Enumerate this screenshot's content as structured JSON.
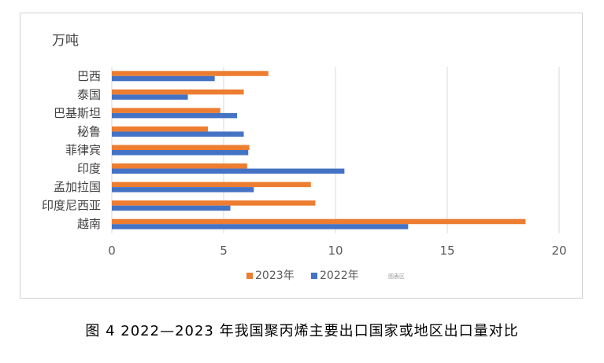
{
  "caption": "图 4  2022—2023 年我国聚丙烯主要出口国家或地区出口量对比",
  "colors": {
    "series_2023": "#ED7D31",
    "series_2022": "#4472C4",
    "grid": "#d9d9d9",
    "text": "#404040",
    "axis_text": "#595959"
  },
  "chart_data": {
    "type": "bar",
    "orientation": "horizontal",
    "title": "",
    "unit_label": "万吨",
    "categories": [
      "巴西",
      "泰国",
      "巴基斯坦",
      "秘鲁",
      "菲律宾",
      "印度",
      "孟加拉国",
      "印度尼西亚",
      "越南"
    ],
    "series": [
      {
        "name": "2023年",
        "values": [
          7.0,
          5.9,
          4.85,
          4.3,
          6.15,
          6.05,
          8.9,
          9.1,
          18.5
        ]
      },
      {
        "name": "2022年",
        "values": [
          4.6,
          3.4,
          5.6,
          5.9,
          6.1,
          10.4,
          6.35,
          5.3,
          13.25
        ]
      }
    ],
    "xlim": [
      0,
      20
    ],
    "xticks": [
      "0",
      "5",
      "10",
      "15",
      "20"
    ],
    "grid": "vertical",
    "legend_position": "bottom",
    "legend_extra": "图表区"
  }
}
